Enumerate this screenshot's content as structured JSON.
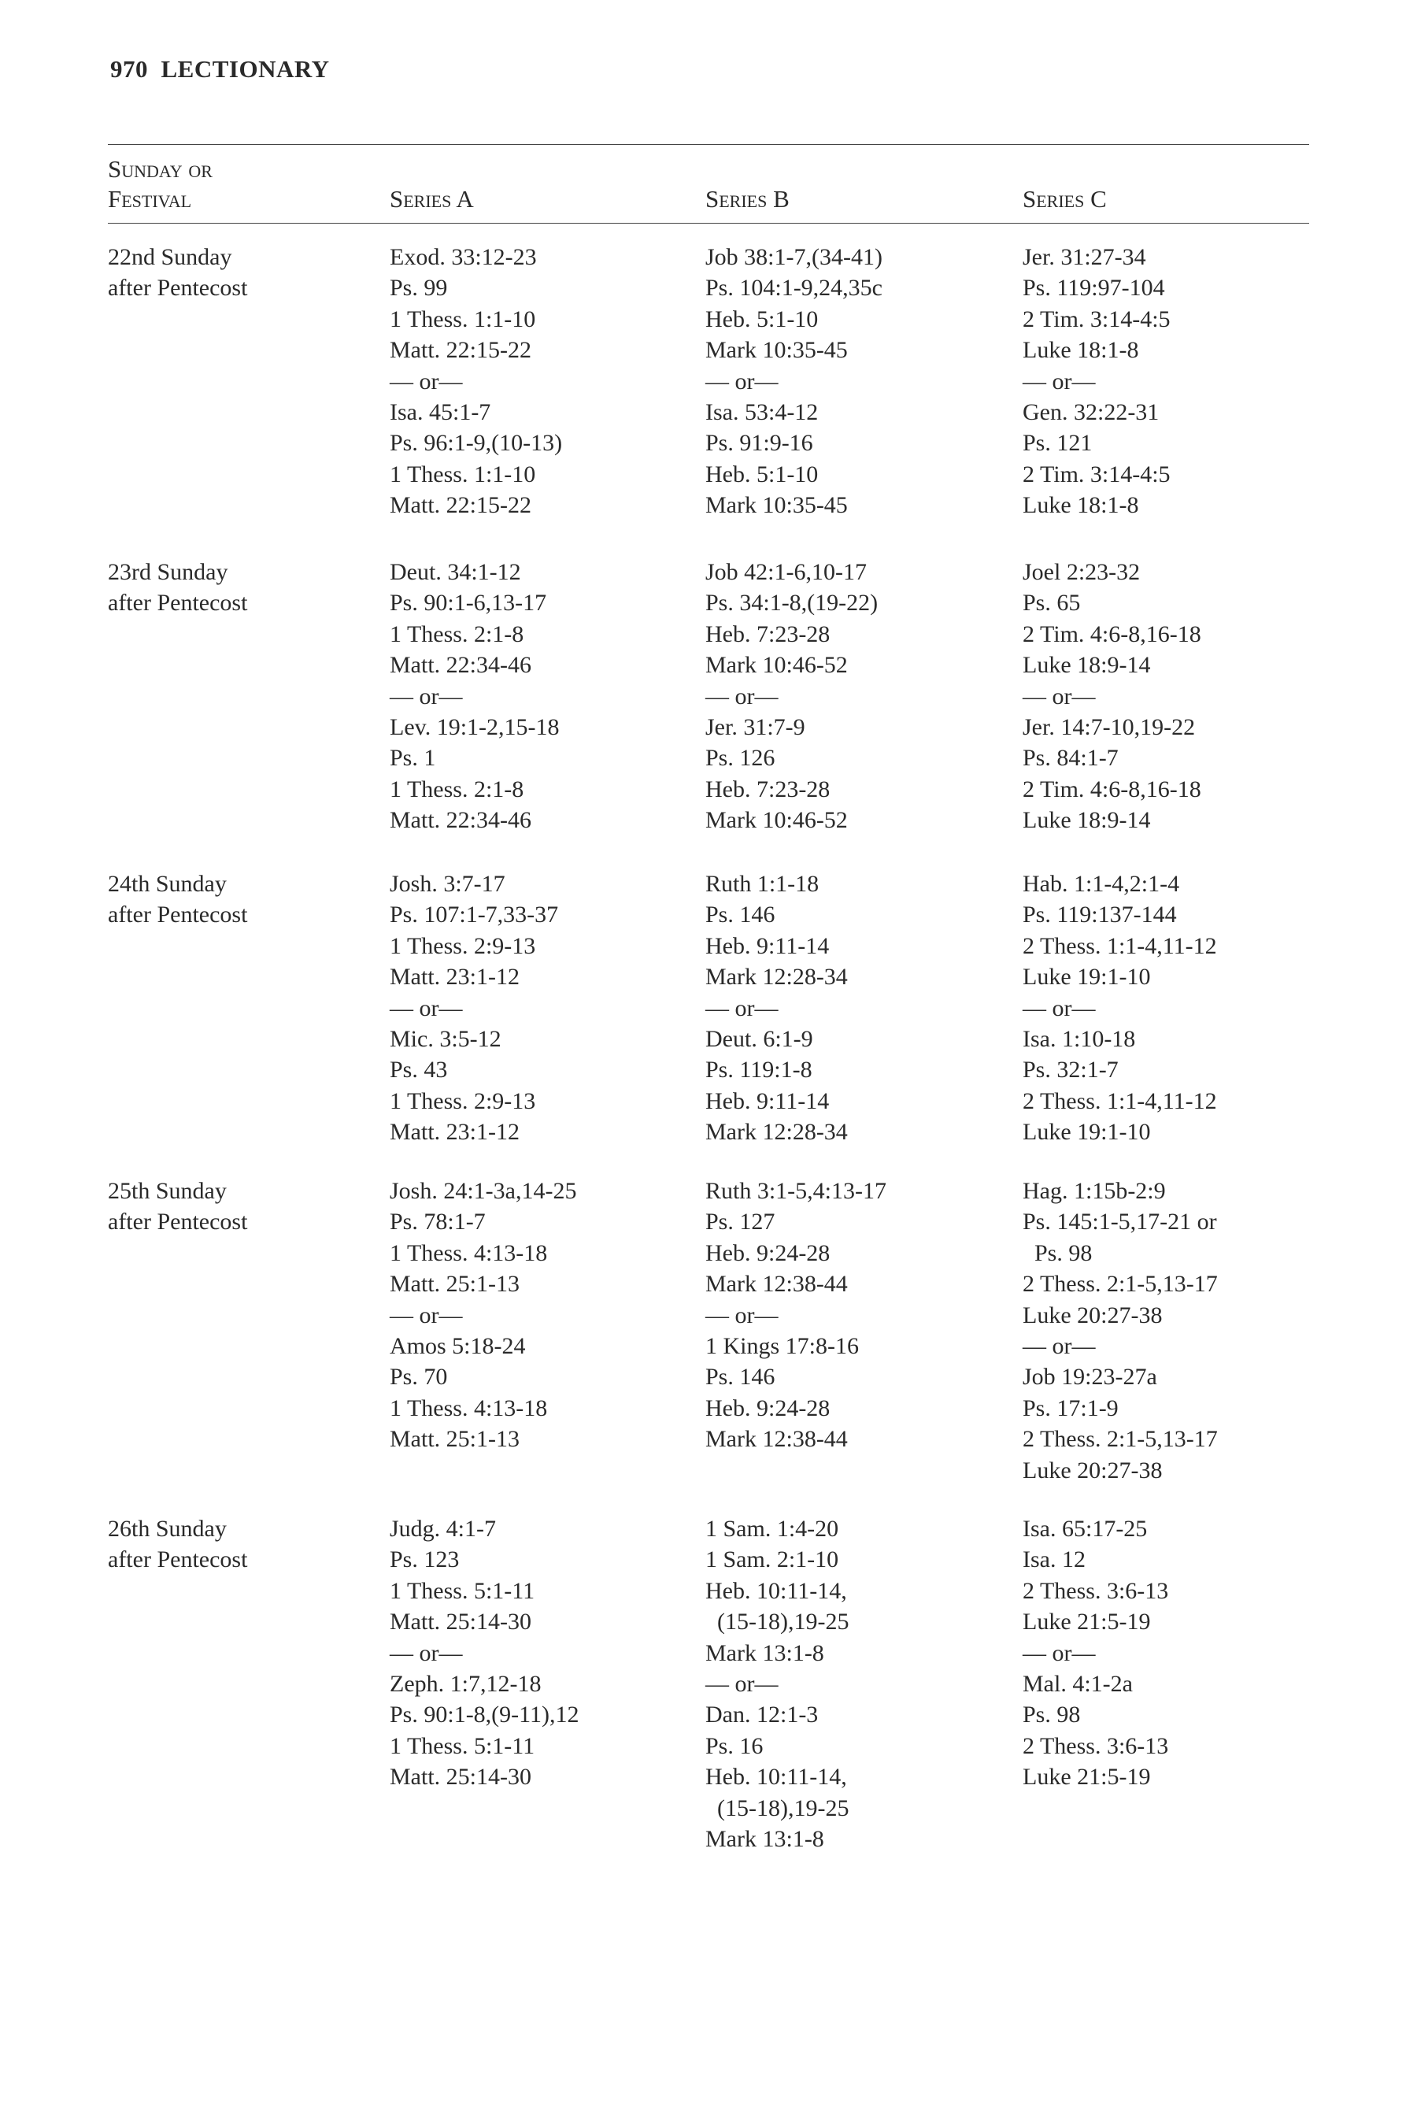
{
  "page": {
    "number": "970",
    "section": "LECTIONARY"
  },
  "headers": {
    "festival_line1": "Sunday or",
    "festival_line2": "Festival",
    "series_a": "Series A",
    "series_b": "Series B",
    "series_c": "Series C"
  },
  "rows": [
    {
      "festival": [
        "22nd Sunday",
        "after Pentecost"
      ],
      "a": [
        "Exod. 33:12-23",
        "Ps. 99",
        "1 Thess. 1:1-10",
        "Matt. 22:15-22",
        "— or—",
        "Isa. 45:1-7",
        "Ps. 96:1-9,(10-13)",
        "1 Thess. 1:1-10",
        "Matt. 22:15-22"
      ],
      "b": [
        "Job 38:1-7,(34-41)",
        "Ps. 104:1-9,24,35c",
        "Heb. 5:1-10",
        "Mark 10:35-45",
        "— or—",
        "Isa. 53:4-12",
        "Ps. 91:9-16",
        "Heb. 5:1-10",
        "Mark 10:35-45"
      ],
      "c": [
        "Jer. 31:27-34",
        "Ps. 119:97-104",
        "2 Tim. 3:14-4:5",
        "Luke 18:1-8",
        "— or—",
        "Gen. 32:22-31",
        "Ps. 121",
        "2 Tim. 3:14-4:5",
        "Luke 18:1-8"
      ]
    },
    {
      "festival": [
        "23rd Sunday",
        "after Pentecost"
      ],
      "a": [
        "Deut. 34:1-12",
        "Ps. 90:1-6,13-17",
        "1 Thess. 2:1-8",
        "Matt. 22:34-46",
        "— or—",
        "Lev. 19:1-2,15-18",
        "Ps. 1",
        "1 Thess. 2:1-8",
        "Matt. 22:34-46"
      ],
      "b": [
        "Job 42:1-6,10-17",
        "Ps. 34:1-8,(19-22)",
        "Heb. 7:23-28",
        "Mark 10:46-52",
        "— or—",
        "Jer. 31:7-9",
        "Ps. 126",
        "Heb. 7:23-28",
        "Mark 10:46-52"
      ],
      "c": [
        "Joel 2:23-32",
        "Ps. 65",
        "2 Tim. 4:6-8,16-18",
        "Luke 18:9-14",
        "— or—",
        "Jer. 14:7-10,19-22",
        "Ps. 84:1-7",
        "2 Tim. 4:6-8,16-18",
        "Luke 18:9-14"
      ]
    },
    {
      "festival": [
        "24th Sunday",
        "after Pentecost"
      ],
      "a": [
        "Josh. 3:7-17",
        "Ps. 107:1-7,33-37",
        "1 Thess. 2:9-13",
        "Matt. 23:1-12",
        "— or—",
        "Mic. 3:5-12",
        "Ps. 43",
        "1 Thess. 2:9-13",
        "Matt. 23:1-12"
      ],
      "b": [
        "Ruth 1:1-18",
        "Ps. 146",
        "Heb. 9:11-14",
        "Mark 12:28-34",
        "— or—",
        "Deut. 6:1-9",
        "Ps. 119:1-8",
        "Heb. 9:11-14",
        "Mark 12:28-34"
      ],
      "c": [
        "Hab. 1:1-4,2:1-4",
        "Ps. 119:137-144",
        "2 Thess. 1:1-4,11-12",
        "Luke 19:1-10",
        "— or—",
        "Isa. 1:10-18",
        "Ps. 32:1-7",
        "2 Thess. 1:1-4,11-12",
        "Luke 19:1-10"
      ]
    },
    {
      "festival": [
        "25th Sunday",
        "after Pentecost"
      ],
      "a": [
        "Josh. 24:1-3a,14-25",
        "Ps. 78:1-7",
        "1 Thess. 4:13-18",
        "Matt. 25:1-13",
        "— or—",
        "Amos 5:18-24",
        "Ps. 70",
        "1 Thess. 4:13-18",
        "Matt. 25:1-13"
      ],
      "b": [
        "Ruth 3:1-5,4:13-17",
        "Ps. 127",
        "Heb. 9:24-28",
        "Mark 12:38-44",
        "— or—",
        "1 Kings 17:8-16",
        "Ps. 146",
        "Heb. 9:24-28",
        "Mark 12:38-44"
      ],
      "c": [
        "Hag. 1:15b-2:9",
        "Ps. 145:1-5,17-21 or",
        "  Ps. 98",
        "2 Thess. 2:1-5,13-17",
        "Luke 20:27-38",
        "— or—",
        "Job 19:23-27a",
        "Ps. 17:1-9",
        "2 Thess. 2:1-5,13-17",
        "Luke 20:27-38"
      ]
    },
    {
      "festival": [
        "26th Sunday",
        "after Pentecost"
      ],
      "a": [
        "Judg. 4:1-7",
        "Ps. 123",
        "1 Thess. 5:1-11",
        "Matt. 25:14-30",
        "— or—",
        "Zeph. 1:7,12-18",
        "Ps. 90:1-8,(9-11),12",
        "1 Thess. 5:1-11",
        "Matt. 25:14-30"
      ],
      "b": [
        "1 Sam. 1:4-20",
        "1 Sam. 2:1-10",
        "Heb. 10:11-14,",
        "  (15-18),19-25",
        "Mark 13:1-8",
        "— or—",
        "Dan. 12:1-3",
        "Ps. 16",
        "Heb. 10:11-14,",
        "  (15-18),19-25",
        "Mark 13:1-8"
      ],
      "c": [
        "Isa. 65:17-25",
        "Isa. 12",
        "2 Thess. 3:6-13",
        "Luke 21:5-19",
        "— or—",
        "Mal. 4:1-2a",
        "Ps. 98",
        "2 Thess. 3:6-13",
        "Luke 21:5-19"
      ]
    }
  ]
}
